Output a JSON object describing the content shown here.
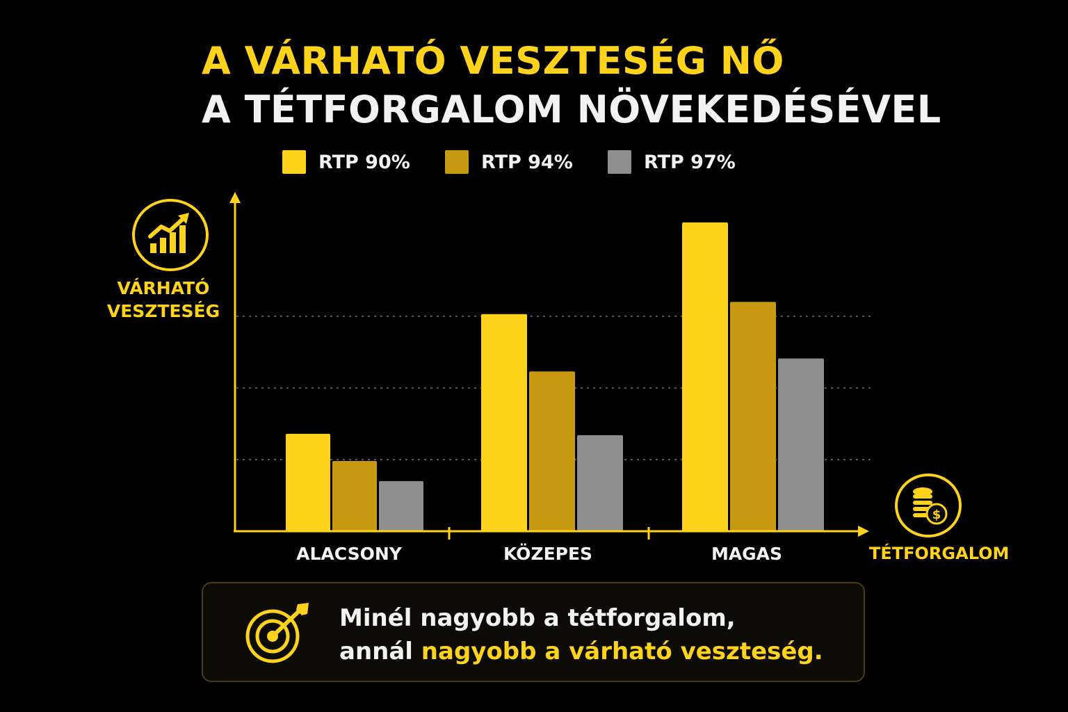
{
  "header": {
    "title_line1": "A VÁRHATÓ VESZTESÉG NŐ",
    "title_line2": "A TÉTFORGALOM NÖVEKEDÉSÉVEL"
  },
  "colors": {
    "background": "#000000",
    "accent_yellow": "#FFD21C",
    "rtp90": "#FFD21C",
    "rtp94": "#C89A12",
    "rtp97": "#8E8E8E",
    "text_white": "#F2F2F2"
  },
  "icons": {
    "y_axis": "growth-bar-chart-icon",
    "x_axis": "coin-stack-dollar-icon",
    "callout": "target-arrow-icon"
  },
  "chart_data": {
    "type": "bar",
    "title": "A VÁRHATÓ VESZTESÉG NŐ A TÉTFORGALOM NÖVEKEDÉSÉVEL",
    "ylabel_lines": [
      "VÁRHATÓ",
      "VESZTESÉG"
    ],
    "xlabel": "TÉTFORGALOM",
    "categories": [
      "ALACSONY",
      "KÖZEPES",
      "MAGAS"
    ],
    "series": [
      {
        "name": "RTP 90%",
        "color": "#FFD21C",
        "values": [
          1.36,
          3.03,
          4.31
        ]
      },
      {
        "name": "RTP 94%",
        "color": "#C89A12",
        "values": [
          0.98,
          2.23,
          3.2
        ]
      },
      {
        "name": "RTP 97%",
        "color": "#8E8E8E",
        "values": [
          0.7,
          1.34,
          2.41
        ]
      }
    ],
    "ylim": [
      0,
      4.6
    ],
    "grid": true,
    "gridlines": [
      1,
      2,
      3
    ],
    "y_tick_labels": false,
    "legend": "top"
  },
  "callout": {
    "line1": "Minél nagyobb a tétforgalom,",
    "line2_prefix": "annál ",
    "line2_highlight": "nagyobb a várható veszteség."
  }
}
